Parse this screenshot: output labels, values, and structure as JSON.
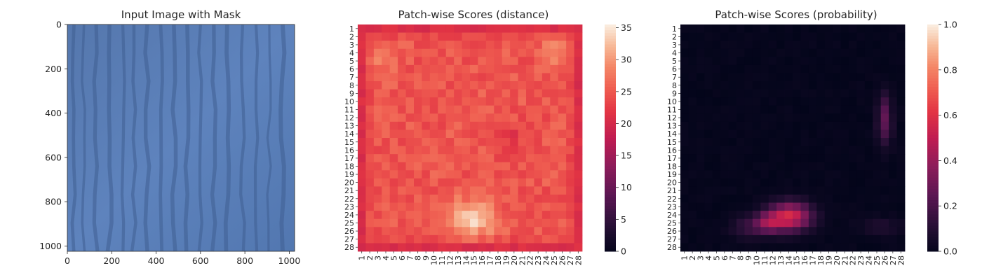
{
  "chart_data": [
    {
      "type": "image",
      "title": "Input Image with Mask",
      "x_ticks": [
        "0",
        "200",
        "400",
        "600",
        "800",
        "1000"
      ],
      "y_ticks": [
        "0",
        "200",
        "400",
        "600",
        "800",
        "1000"
      ],
      "x_range": [
        0,
        1024
      ],
      "y_range": [
        0,
        1024
      ],
      "image": {
        "description_color": "#5b7fb8",
        "stripe_color": "#3f5f92",
        "stripe_x": [
          30,
          75,
          130,
          190,
          250,
          300,
          360,
          420,
          480,
          540,
          600,
          660,
          720,
          790,
          850,
          910,
          970
        ]
      }
    },
    {
      "type": "heatmap",
      "title": "Patch-wise Scores (distance)",
      "row_labels": [
        "1",
        "2",
        "3",
        "4",
        "5",
        "6",
        "7",
        "8",
        "9",
        "10",
        "11",
        "12",
        "13",
        "14",
        "15",
        "16",
        "17",
        "18",
        "19",
        "20",
        "21",
        "22",
        "23",
        "24",
        "25",
        "26",
        "27",
        "28"
      ],
      "col_labels": [
        "1",
        "2",
        "3",
        "4",
        "5",
        "6",
        "7",
        "8",
        "9",
        "10",
        "11",
        "12",
        "13",
        "14",
        "15",
        "16",
        "17",
        "18",
        "19",
        "20",
        "21",
        "22",
        "23",
        "24",
        "25",
        "26",
        "27",
        "28"
      ],
      "colorbar": {
        "min": 0,
        "max": 35.5,
        "ticks": [
          "0",
          "5",
          "10",
          "15",
          "20",
          "25",
          "30",
          "35"
        ],
        "tick_values": [
          0,
          5,
          10,
          15,
          20,
          25,
          30,
          35
        ]
      },
      "summary": {
        "border": 21,
        "interior": 26,
        "hot_spots": [
          {
            "row": 24,
            "col": 15,
            "value": 35
          },
          {
            "row": 25,
            "col": 14,
            "value": 34
          },
          {
            "row": 4,
            "col": 25,
            "value": 31
          }
        ],
        "cold_spots": [
          {
            "row": 14,
            "col": 19,
            "value": 21
          }
        ]
      }
    },
    {
      "type": "heatmap",
      "title": "Patch-wise Scores (probability)",
      "row_labels": [
        "1",
        "2",
        "3",
        "4",
        "5",
        "6",
        "7",
        "8",
        "9",
        "10",
        "11",
        "12",
        "13",
        "14",
        "15",
        "16",
        "17",
        "18",
        "19",
        "20",
        "21",
        "22",
        "23",
        "24",
        "25",
        "26",
        "27",
        "28"
      ],
      "col_labels": [
        "1",
        "2",
        "3",
        "4",
        "5",
        "6",
        "7",
        "8",
        "9",
        "10",
        "11",
        "12",
        "13",
        "14",
        "15",
        "16",
        "17",
        "18",
        "19",
        "20",
        "21",
        "22",
        "23",
        "24",
        "25",
        "26",
        "27",
        "28"
      ],
      "colorbar": {
        "min": 0,
        "max": 1.0,
        "ticks": [
          "0.0",
          "0.2",
          "0.4",
          "0.6",
          "0.8",
          "1.0"
        ],
        "tick_values": [
          0,
          0.2,
          0.4,
          0.6,
          0.8,
          1.0
        ]
      },
      "summary": {
        "hot_spots": [
          {
            "row": 24,
            "col": 14,
            "value": 0.55
          },
          {
            "row": 25,
            "col": 12,
            "value": 0.45
          },
          {
            "row": 11,
            "col": 26,
            "value": 0.25
          }
        ]
      }
    }
  ]
}
